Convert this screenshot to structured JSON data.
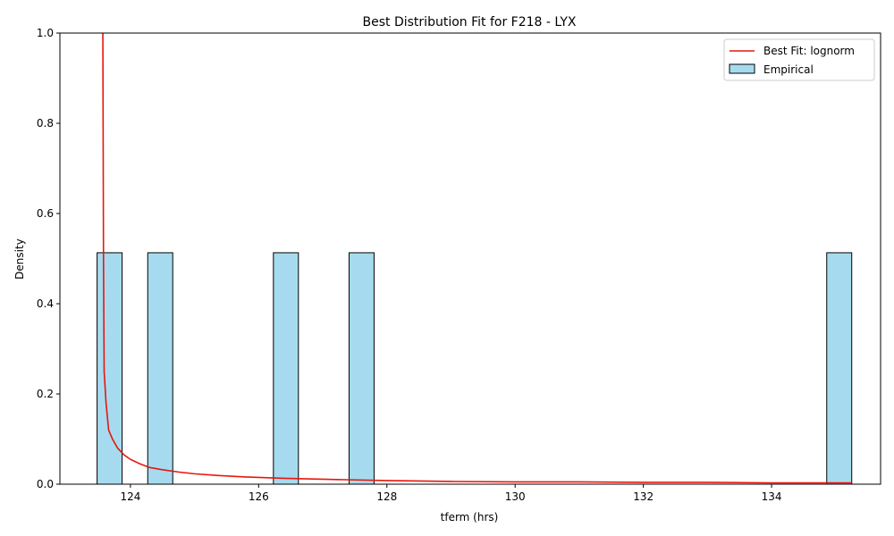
{
  "chart_data": {
    "type": "bar",
    "title": "Best Distribution Fit for F218 - LYX",
    "xlabel": "tferm (hrs)",
    "ylabel": "Density",
    "xlim": [
      122.9,
      135.7
    ],
    "ylim": [
      0,
      1.0
    ],
    "xticks": [
      124,
      126,
      128,
      130,
      132,
      134
    ],
    "yticks": [
      0.0,
      0.2,
      0.4,
      0.6,
      0.8,
      1.0
    ],
    "bar_width": 0.39,
    "histogram": {
      "name": "Empirical",
      "color": "#a6dbef",
      "edgecolor": "#000000",
      "bins": [
        {
          "left": 123.48,
          "right": 123.87,
          "density": 0.513
        },
        {
          "left": 124.27,
          "right": 124.66,
          "density": 0.513
        },
        {
          "left": 126.23,
          "right": 126.62,
          "density": 0.513
        },
        {
          "left": 127.41,
          "right": 127.8,
          "density": 0.513
        },
        {
          "left": 134.86,
          "right": 135.25,
          "density": 0.513
        }
      ]
    },
    "fit_line": {
      "name": "Best Fit: lognorm",
      "color": "#e8150e",
      "x": [
        123.57,
        123.58,
        123.59,
        123.62,
        123.66,
        123.72,
        123.8,
        123.9,
        124.0,
        124.15,
        124.3,
        124.5,
        124.75,
        125.0,
        125.4,
        125.8,
        126.4,
        127.0,
        128.0,
        129.0,
        130.0,
        131.0,
        132.0,
        133.0,
        134.0,
        135.0,
        135.25
      ],
      "y": [
        1.0,
        0.5,
        0.25,
        0.18,
        0.12,
        0.1,
        0.08,
        0.065,
        0.055,
        0.045,
        0.037,
        0.032,
        0.027,
        0.023,
        0.019,
        0.016,
        0.013,
        0.011,
        0.008,
        0.006,
        0.005,
        0.005,
        0.004,
        0.004,
        0.003,
        0.003,
        0.003
      ]
    },
    "legend_position": "upper right",
    "grid": false
  }
}
